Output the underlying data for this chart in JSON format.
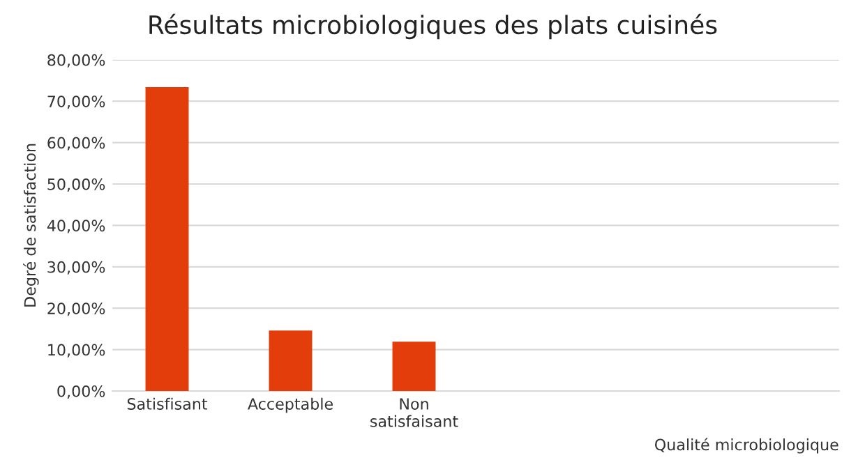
{
  "chart_data": {
    "type": "bar",
    "title": "Résultats microbiologiques des plats cuisinés",
    "xlabel": "Qualité microbiologique",
    "ylabel": "Degré de satisfaction",
    "categories": [
      "Satisfisant",
      "Acceptable",
      "Non\nsatisfaisant",
      null,
      null,
      null
    ],
    "values": [
      73.4,
      14.6,
      11.9,
      null,
      null,
      null
    ],
    "color": "#e23d0b",
    "ylim": [
      0,
      80
    ],
    "yticks": [
      {
        "value": 0,
        "label": "0,00%"
      },
      {
        "value": 10,
        "label": "10,00%"
      },
      {
        "value": 20,
        "label": "20,00%"
      },
      {
        "value": 30,
        "label": "30,00%"
      },
      {
        "value": 40,
        "label": "40,00%"
      },
      {
        "value": 50,
        "label": "50,00%"
      },
      {
        "value": 60,
        "label": "60,00%"
      },
      {
        "value": 70,
        "label": "70,00%"
      },
      {
        "value": 80,
        "label": "80,00%"
      }
    ],
    "grid": "y"
  }
}
